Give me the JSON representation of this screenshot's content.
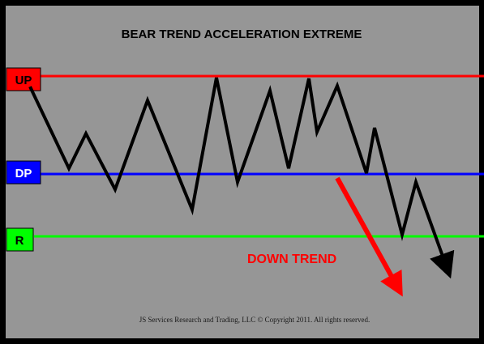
{
  "title": "BEAR TREND ACCELERATION EXTREME",
  "levels": [
    {
      "key": "up",
      "label": "UP",
      "color": "#ff0000",
      "label_text_color": "#000000"
    },
    {
      "key": "dp",
      "label": "DP",
      "color": "#0000ff",
      "label_text_color": "#ffffff"
    },
    {
      "key": "r",
      "label": "R",
      "color": "#00ff00",
      "label_text_color": "#000000"
    }
  ],
  "annotation": {
    "text": "DOWN TREND",
    "color": "#ff0000"
  },
  "price_path_color": "#000000",
  "background_color": "#969696",
  "footer": "JS Services Research  and Trading, LLC © Copyright 2011. All rights reserved."
}
